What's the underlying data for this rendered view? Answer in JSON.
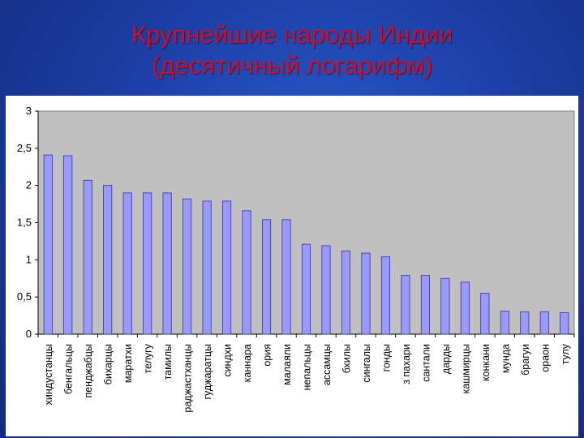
{
  "slide": {
    "title_line1": "Крупнейшие народы Индии",
    "title_line2": "(десятичный логарифм)"
  },
  "colors": {
    "background": "#1c3fa6",
    "title": "#c8102e",
    "plot_area": "#c0c0c0",
    "bar_fill": "#9999ff",
    "bar_stroke": "#333399"
  },
  "chart_data": {
    "type": "bar",
    "title": "",
    "xlabel": "",
    "ylabel": "",
    "ylim": [
      0,
      3
    ],
    "yticks": [
      "0",
      "0,5",
      "1",
      "1,5",
      "2",
      "2,5",
      "3"
    ],
    "grid": false,
    "legend": "none",
    "categories": [
      "хиндустанцы",
      "бенгальцы",
      "пенджабцы",
      "бихарцы",
      "маратхи",
      "телугу",
      "тамилы",
      "раджастханцы",
      "гуджаратцы",
      "синдхи",
      "каннара",
      "ория",
      "малаяли",
      "непальцы",
      "ассамцы",
      "бхилы",
      "сингалы",
      "гонды",
      "з пахари",
      "сантали",
      "дарды",
      "кашмирцы",
      "конкани",
      "мунда",
      "брагуи",
      "ораон",
      "тулу"
    ],
    "values": [
      2.41,
      2.4,
      2.07,
      2.0,
      1.9,
      1.9,
      1.9,
      1.82,
      1.79,
      1.79,
      1.66,
      1.54,
      1.54,
      1.21,
      1.19,
      1.12,
      1.09,
      1.04,
      0.79,
      0.79,
      0.75,
      0.7,
      0.55,
      0.31,
      0.3,
      0.3,
      0.29
    ]
  }
}
